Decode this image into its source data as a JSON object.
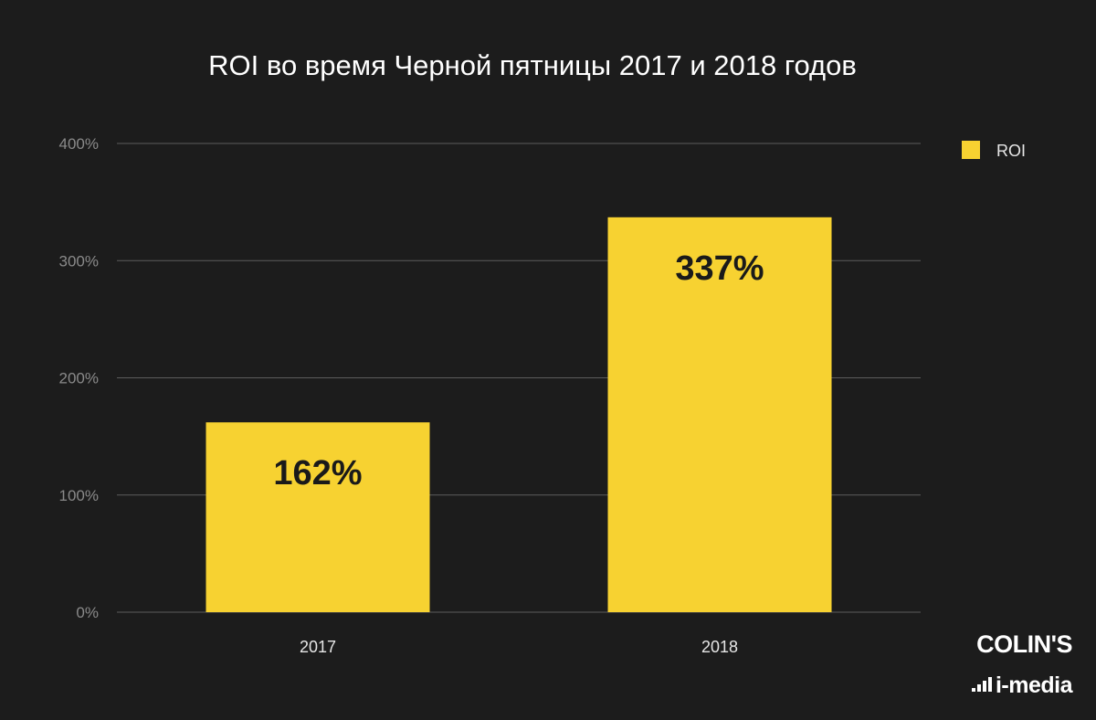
{
  "chart_data": {
    "type": "bar",
    "title": "ROI во время Черной пятницы 2017 и 2018 годов",
    "categories": [
      "2017",
      "2018"
    ],
    "series": [
      {
        "name": "ROI",
        "values": [
          162,
          337
        ],
        "labels": [
          "162%",
          "337%"
        ],
        "color": "#f7d231"
      }
    ],
    "ylim": [
      0,
      400
    ],
    "yticks": [
      0,
      100,
      200,
      300,
      400
    ],
    "ytick_labels": [
      "0%",
      "100%",
      "200%",
      "300%",
      "400%"
    ],
    "xlabel": "",
    "ylabel": "",
    "grid": true,
    "legend": "top-right"
  },
  "branding": {
    "logo_top": "COLIN'S",
    "logo_bottom": "i-media"
  },
  "colors": {
    "background": "#1c1c1c",
    "bar": "#f7d231",
    "gridline": "#5c5c5c"
  }
}
